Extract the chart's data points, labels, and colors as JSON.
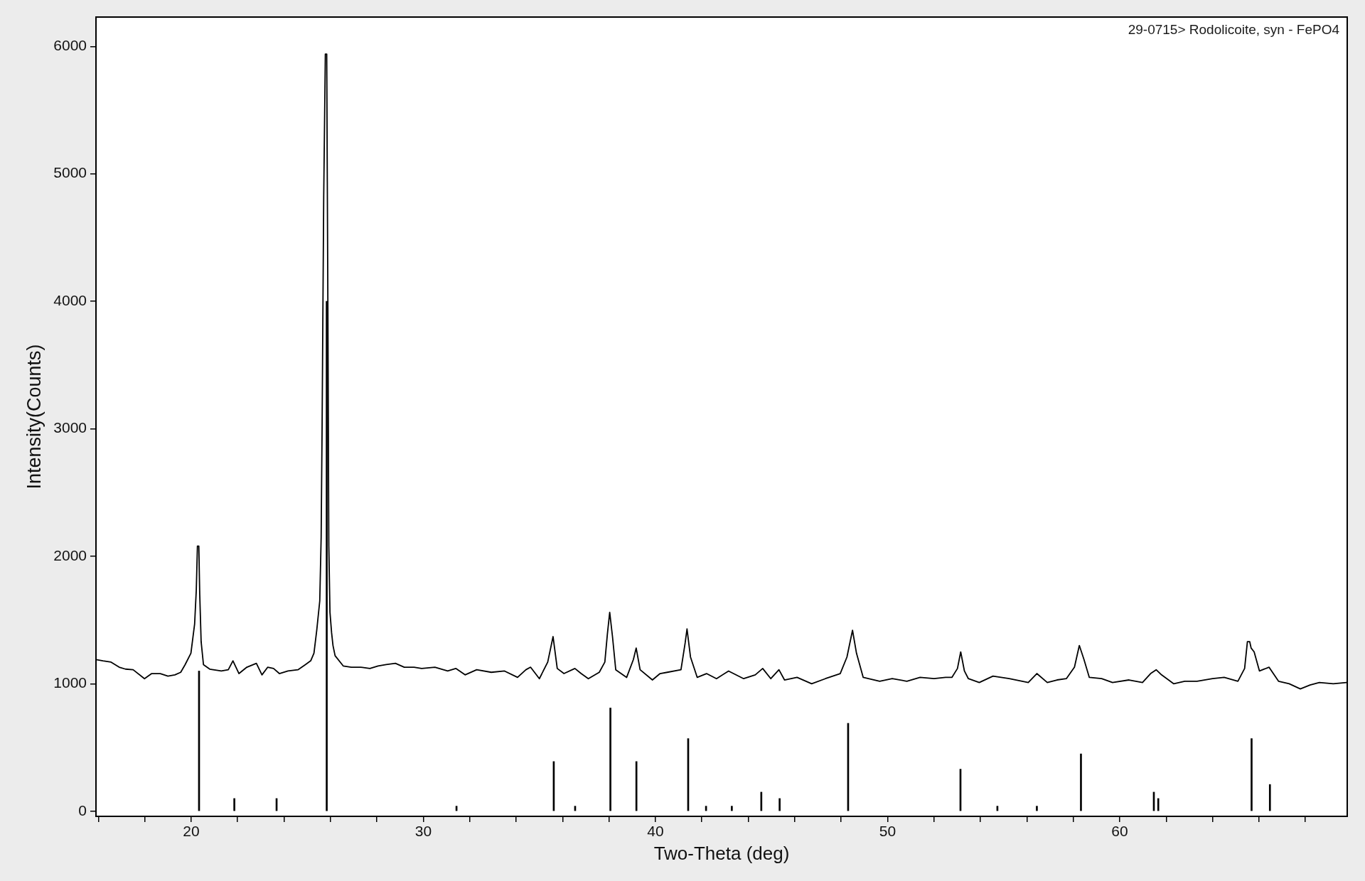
{
  "chart_data": {
    "type": "line",
    "xlabel": "Two-Theta (deg)",
    "ylabel": "Intensity(Counts)",
    "annotations": [
      "29-0715> Rodolicoite, syn - FePO4"
    ],
    "xlim": [
      15.9,
      69.8
    ],
    "ylim": [
      -40,
      6230
    ],
    "xticks": [
      {
        "value": 16,
        "label": null
      },
      {
        "value": 18,
        "label": null
      },
      20,
      {
        "value": 22,
        "label": null
      },
      {
        "value": 24,
        "label": null
      },
      {
        "value": 26,
        "label": null
      },
      {
        "value": 28,
        "label": null
      },
      30,
      {
        "value": 32,
        "label": null
      },
      {
        "value": 34,
        "label": null
      },
      {
        "value": 36,
        "label": null
      },
      {
        "value": 38,
        "label": null
      },
      40,
      {
        "value": 42,
        "label": null
      },
      {
        "value": 44,
        "label": null
      },
      {
        "value": 46,
        "label": null
      },
      {
        "value": 48,
        "label": null
      },
      50,
      {
        "value": 52,
        "label": null
      },
      {
        "value": 54,
        "label": null
      },
      {
        "value": 56,
        "label": null
      },
      {
        "value": 58,
        "label": null
      },
      60,
      {
        "value": 62,
        "label": null
      },
      {
        "value": 64,
        "label": null
      },
      {
        "value": 66,
        "label": null
      },
      {
        "value": 68,
        "label": null
      }
    ],
    "yticks": [
      0,
      1000,
      2000,
      3000,
      4000,
      5000,
      6000
    ],
    "series": [
      {
        "color": "#000000",
        "x": [
          15.9,
          16.2,
          16.55,
          16.9,
          17.17,
          17.5,
          17.99,
          18.3,
          18.67,
          19.0,
          19.3,
          19.55,
          19.74,
          19.99,
          20.15,
          20.22,
          20.27,
          20.33,
          20.37,
          20.43,
          20.53,
          20.8,
          21.3,
          21.6,
          21.8,
          22.06,
          22.4,
          22.81,
          23.05,
          23.3,
          23.55,
          23.8,
          24.17,
          24.6,
          24.92,
          25.15,
          25.29,
          25.41,
          25.54,
          25.6,
          25.64,
          25.71,
          25.78,
          25.84,
          25.89,
          25.93,
          25.98,
          26.05,
          26.11,
          26.2,
          26.55,
          26.9,
          27.3,
          27.7,
          28.05,
          28.4,
          28.8,
          29.18,
          29.6,
          29.93,
          30.5,
          31.05,
          31.4,
          31.8,
          32.3,
          32.93,
          33.5,
          34.06,
          34.42,
          34.62,
          35.0,
          35.36,
          35.59,
          35.77,
          36.06,
          36.53,
          36.8,
          37.11,
          37.58,
          37.82,
          37.93,
          38.03,
          38.15,
          38.29,
          38.76,
          39.05,
          39.17,
          39.34,
          39.87,
          40.2,
          40.51,
          41.1,
          41.28,
          41.36,
          41.51,
          41.8,
          42.2,
          42.63,
          43.15,
          43.8,
          44.3,
          44.62,
          44.97,
          45.32,
          45.56,
          46.1,
          46.73,
          47.32,
          47.96,
          48.25,
          48.49,
          48.66,
          48.95,
          49.66,
          50.2,
          50.83,
          51.4,
          52.0,
          52.5,
          52.77,
          53.01,
          53.15,
          53.31,
          53.48,
          53.95,
          54.54,
          55.24,
          56.06,
          56.43,
          56.88,
          57.3,
          57.7,
          58.05,
          58.26,
          58.46,
          58.69,
          59.22,
          59.69,
          60.4,
          60.98,
          61.33,
          61.57,
          61.8,
          62.33,
          62.8,
          63.33,
          64.0,
          64.5,
          65.09,
          65.38,
          65.5,
          65.6,
          65.66,
          65.79,
          66.02,
          66.43,
          66.84,
          67.3,
          67.78,
          68.2,
          68.6,
          69.2,
          69.77
        ],
        "values": [
          1190,
          1180,
          1170,
          1130,
          1115,
          1110,
          1040,
          1080,
          1080,
          1060,
          1070,
          1090,
          1150,
          1240,
          1470,
          1730,
          2080,
          2080,
          1700,
          1330,
          1150,
          1115,
          1100,
          1110,
          1180,
          1080,
          1130,
          1160,
          1070,
          1130,
          1120,
          1080,
          1100,
          1110,
          1150,
          1180,
          1240,
          1420,
          1650,
          2150,
          3000,
          4820,
          5940,
          5940,
          3950,
          2080,
          1560,
          1400,
          1300,
          1220,
          1140,
          1130,
          1130,
          1120,
          1140,
          1150,
          1160,
          1130,
          1130,
          1120,
          1130,
          1100,
          1120,
          1070,
          1110,
          1090,
          1100,
          1050,
          1110,
          1130,
          1040,
          1170,
          1370,
          1120,
          1080,
          1120,
          1080,
          1040,
          1090,
          1170,
          1390,
          1560,
          1370,
          1110,
          1050,
          1190,
          1280,
          1110,
          1030,
          1080,
          1090,
          1110,
          1320,
          1430,
          1210,
          1050,
          1080,
          1040,
          1100,
          1040,
          1070,
          1120,
          1040,
          1110,
          1030,
          1050,
          1000,
          1040,
          1080,
          1210,
          1420,
          1240,
          1050,
          1020,
          1040,
          1020,
          1050,
          1040,
          1050,
          1050,
          1120,
          1250,
          1100,
          1040,
          1010,
          1060,
          1040,
          1010,
          1080,
          1010,
          1030,
          1040,
          1130,
          1300,
          1190,
          1050,
          1040,
          1010,
          1030,
          1010,
          1080,
          1110,
          1070,
          1000,
          1020,
          1020,
          1040,
          1050,
          1020,
          1120,
          1330,
          1330,
          1280,
          1250,
          1100,
          1130,
          1020,
          1000,
          960,
          990,
          1010,
          1000,
          1010
        ]
      },
      {
        "type": "bar",
        "color": "#000000",
        "x": [
          20.34,
          21.86,
          23.68,
          25.84,
          31.43,
          35.62,
          36.54,
          38.06,
          39.18,
          41.41,
          42.18,
          43.29,
          44.56,
          45.35,
          48.3,
          53.14,
          54.73,
          56.43,
          58.33,
          61.47,
          61.66,
          65.68,
          66.47
        ],
        "values": [
          1100,
          100,
          100,
          4000,
          40,
          390,
          40,
          810,
          390,
          570,
          40,
          40,
          150,
          100,
          690,
          330,
          40,
          40,
          450,
          150,
          100,
          570,
          210
        ]
      }
    ]
  }
}
